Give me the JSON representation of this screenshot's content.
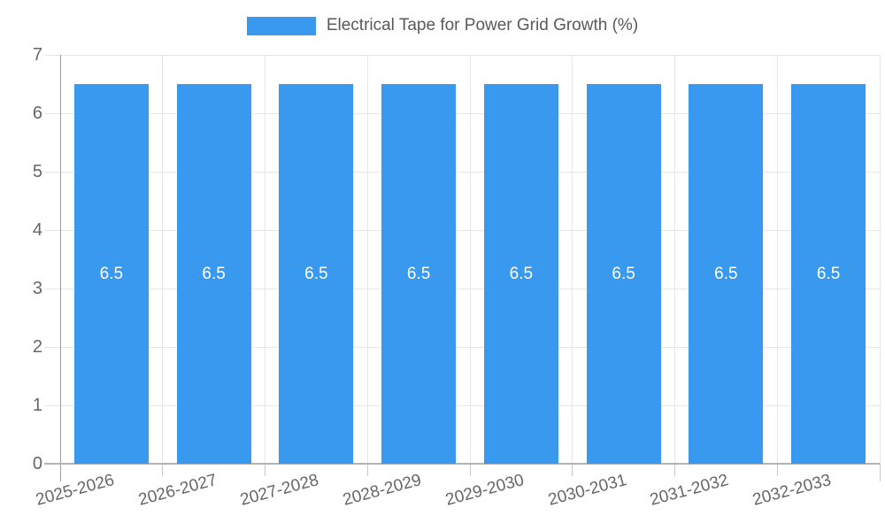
{
  "chart_data": {
    "type": "bar",
    "title": "Electrical Tape for Power Grid Growth (%)",
    "categories": [
      "2025-2026",
      "2026-2027",
      "2027-2028",
      "2028-2029",
      "2029-2030",
      "2030-2031",
      "2031-2032",
      "2032-2033"
    ],
    "series": [
      {
        "name": "Electrical Tape for Power Grid Growth (%)",
        "values": [
          6.5,
          6.5,
          6.5,
          6.5,
          6.5,
          6.5,
          6.5,
          6.5
        ]
      }
    ],
    "bar_value_labels": [
      "6.5",
      "6.5",
      "6.5",
      "6.5",
      "6.5",
      "6.5",
      "6.5",
      "6.5"
    ],
    "xlabel": "",
    "ylabel": "",
    "ylim": [
      0,
      7
    ],
    "yticks": [
      "0",
      "1",
      "2",
      "3",
      "4",
      "5",
      "6",
      "7"
    ],
    "grid": true,
    "legend_position": "top",
    "colors": {
      "bar": "#3999EE",
      "grid": "#E6E6E6",
      "axis_line": "#9E9E9E",
      "baseline": "#B3B3B3",
      "tick": "#C9C9C9",
      "tick_text": "#666666",
      "legend_text": "#595959",
      "bar_label_text": "#FFFFFF",
      "background": "#FFFFFF"
    }
  }
}
